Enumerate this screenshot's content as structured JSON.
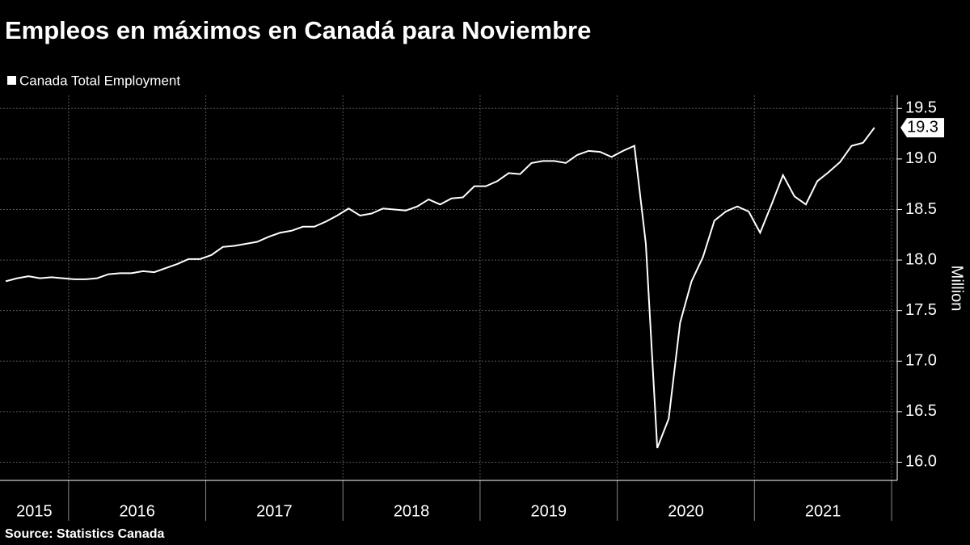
{
  "chart_data": {
    "type": "line",
    "title": "Empleos en máximos en Canadá para Noviembre",
    "y_axis_label": "Million",
    "source": "Source:  Statistics Canada",
    "series": [
      {
        "name": "Canada Total Employment",
        "color": "#ffffff",
        "values": [
          17.79,
          17.82,
          17.84,
          17.82,
          17.83,
          17.82,
          17.81,
          17.81,
          17.82,
          17.86,
          17.87,
          17.87,
          17.89,
          17.88,
          17.92,
          17.96,
          18.01,
          18.01,
          18.05,
          18.13,
          18.14,
          18.16,
          18.18,
          18.23,
          18.27,
          18.29,
          18.33,
          18.33,
          18.38,
          18.44,
          18.51,
          18.44,
          18.46,
          18.51,
          18.5,
          18.49,
          18.53,
          18.6,
          18.55,
          18.61,
          18.62,
          18.73,
          18.73,
          18.78,
          18.86,
          18.85,
          18.96,
          18.98,
          18.98,
          18.96,
          19.04,
          19.08,
          19.07,
          19.02,
          19.08,
          19.13,
          18.16,
          16.14,
          16.43,
          17.38,
          17.79,
          18.03,
          18.39,
          18.48,
          18.53,
          18.48,
          18.27,
          18.55,
          18.84,
          18.63,
          18.55,
          18.78,
          18.87,
          18.97,
          19.13,
          19.16,
          19.31
        ],
        "end_label": "19.3"
      }
    ],
    "x": [
      "2015-07",
      "2015-08",
      "2015-09",
      "2015-10",
      "2015-11",
      "2015-12",
      "2016-01",
      "2016-02",
      "2016-03",
      "2016-04",
      "2016-05",
      "2016-06",
      "2016-07",
      "2016-08",
      "2016-09",
      "2016-10",
      "2016-11",
      "2016-12",
      "2017-01",
      "2017-02",
      "2017-03",
      "2017-04",
      "2017-05",
      "2017-06",
      "2017-07",
      "2017-08",
      "2017-09",
      "2017-10",
      "2017-11",
      "2017-12",
      "2018-01",
      "2018-02",
      "2018-03",
      "2018-04",
      "2018-05",
      "2018-06",
      "2018-07",
      "2018-08",
      "2018-09",
      "2018-10",
      "2018-11",
      "2018-12",
      "2019-01",
      "2019-02",
      "2019-03",
      "2019-04",
      "2019-05",
      "2019-06",
      "2019-07",
      "2019-08",
      "2019-09",
      "2019-10",
      "2019-11",
      "2019-12",
      "2020-01",
      "2020-02",
      "2020-03",
      "2020-04",
      "2020-05",
      "2020-06",
      "2020-07",
      "2020-08",
      "2020-09",
      "2020-10",
      "2020-11",
      "2020-12",
      "2021-01",
      "2021-02",
      "2021-03",
      "2021-04",
      "2021-05",
      "2021-06",
      "2021-07",
      "2021-08",
      "2021-09",
      "2021-10",
      "2021-11"
    ],
    "xlim": [
      2015.5,
      2022
    ],
    "xticks": [
      2016,
      2017,
      2018,
      2019,
      2020,
      2021,
      2022
    ],
    "year_labels": [
      "2015",
      "2016",
      "2017",
      "2018",
      "2019",
      "2020",
      "2021"
    ],
    "ylim": [
      15.82,
      19.63
    ],
    "yticks": [
      {
        "value": 16,
        "label": "16.0"
      },
      {
        "value": 16.5,
        "label": "16.5"
      },
      {
        "value": 17,
        "label": "17.0"
      },
      {
        "value": 17.5,
        "label": "17.5"
      },
      {
        "value": 18,
        "label": "18.0"
      },
      {
        "value": 18.5,
        "label": "18.5"
      },
      {
        "value": 19,
        "label": "19.0"
      },
      {
        "value": 19.5,
        "label": "19.5"
      }
    ],
    "grid": true,
    "legend": "top-left"
  }
}
